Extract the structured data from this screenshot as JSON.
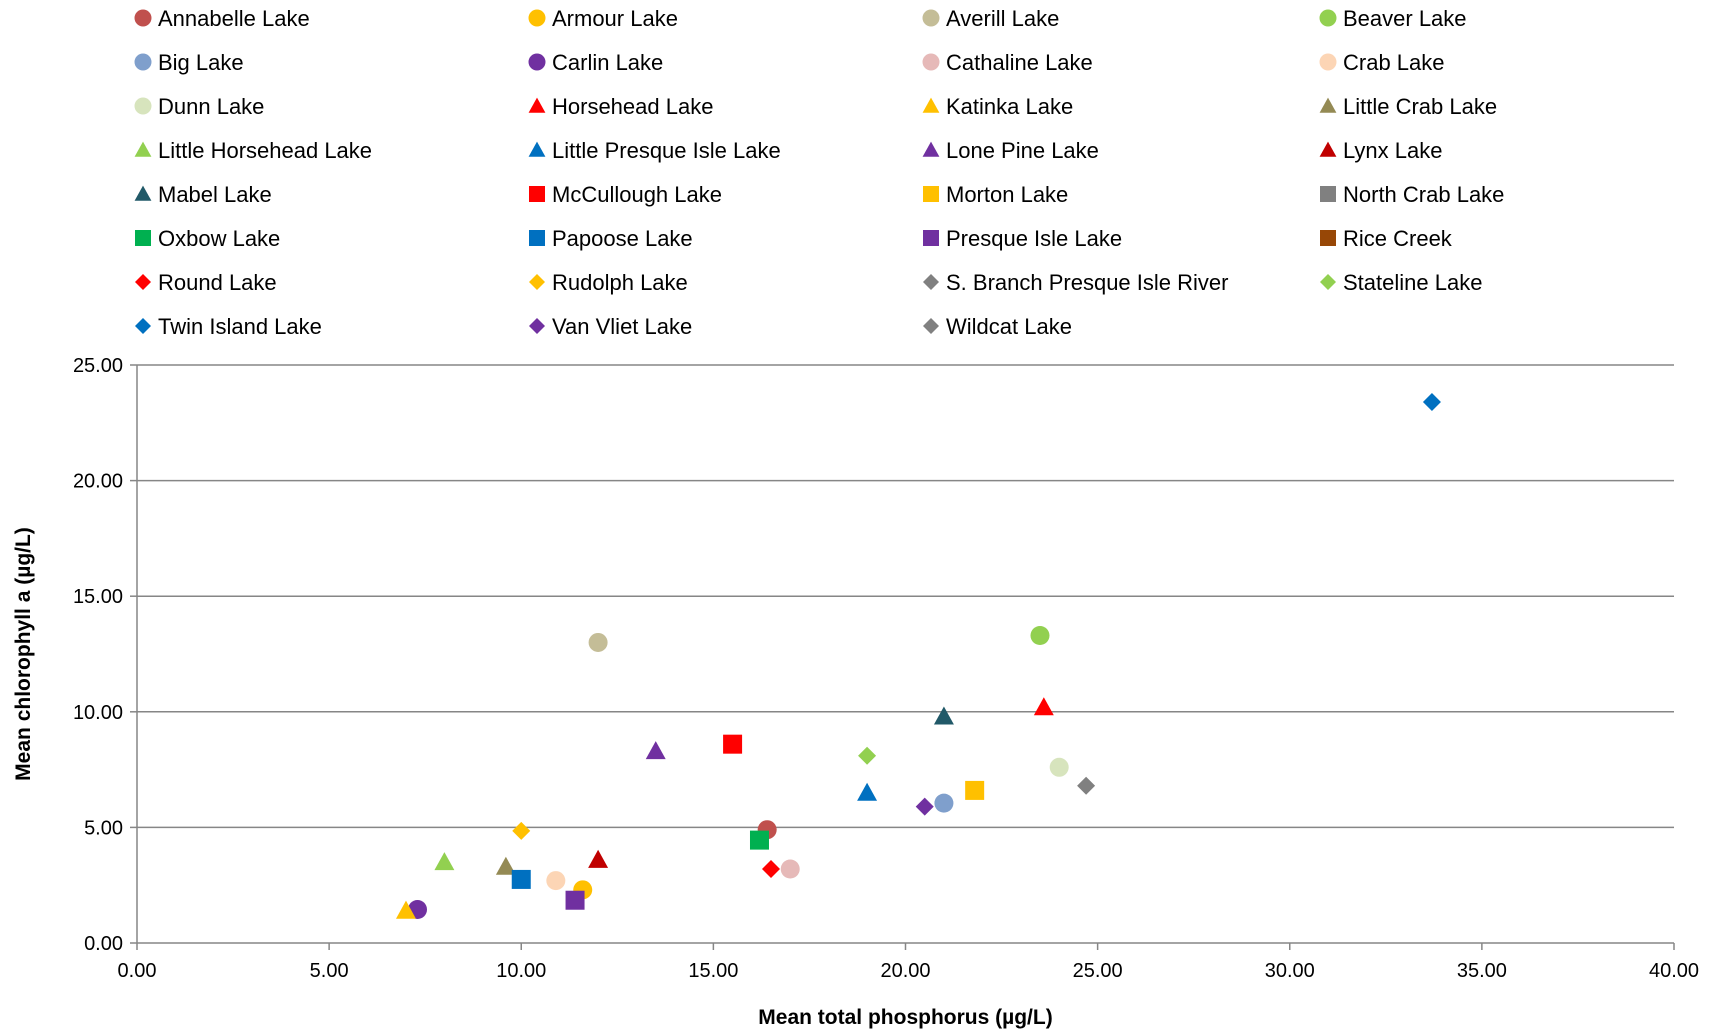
{
  "chart_data": {
    "type": "scatter",
    "title": "",
    "xlabel": "Mean total phosphorus (µg/L)",
    "ylabel": "Mean chlorophyll a (µg/L)",
    "xlim": [
      0,
      40
    ],
    "ylim": [
      0,
      25
    ],
    "x_ticks": [
      "0.00",
      "5.00",
      "10.00",
      "15.00",
      "20.00",
      "25.00",
      "30.00",
      "35.00",
      "40.00"
    ],
    "y_ticks": [
      "0.00",
      "5.00",
      "10.00",
      "15.00",
      "20.00",
      "25.00"
    ],
    "grid": "horizontal",
    "legend_position": "top",
    "series": [
      {
        "name": "Annabelle Lake",
        "marker": "circle",
        "color": "#C0504D",
        "x": 16.4,
        "y": 4.9
      },
      {
        "name": "Armour Lake",
        "marker": "circle",
        "color": "#FFC000",
        "x": 11.6,
        "y": 2.3
      },
      {
        "name": "Averill Lake",
        "marker": "circle",
        "color": "#C4BD97",
        "x": 12.0,
        "y": 13.0
      },
      {
        "name": "Beaver Lake",
        "marker": "circle",
        "color": "#92D050",
        "x": 23.5,
        "y": 13.3
      },
      {
        "name": "Big Lake",
        "marker": "circle",
        "color": "#7F9FCC",
        "x": 21.0,
        "y": 6.05
      },
      {
        "name": "Carlin Lake",
        "marker": "circle",
        "color": "#7030A0",
        "x": 7.3,
        "y": 1.45
      },
      {
        "name": "Cathaline Lake",
        "marker": "circle",
        "color": "#E6B9B8",
        "x": 17.0,
        "y": 3.2
      },
      {
        "name": "Crab Lake",
        "marker": "circle",
        "color": "#FCD5B5",
        "x": 10.9,
        "y": 2.7
      },
      {
        "name": "Dunn Lake",
        "marker": "circle",
        "color": "#D7E4BD",
        "x": 24.0,
        "y": 7.6
      },
      {
        "name": "Horsehead Lake",
        "marker": "triangle",
        "color": "#FF0000",
        "x": 23.6,
        "y": 10.2
      },
      {
        "name": "Katinka Lake",
        "marker": "triangle",
        "color": "#FFC000",
        "x": 7.0,
        "y": 1.4
      },
      {
        "name": "Little Crab Lake",
        "marker": "triangle",
        "color": "#948A54",
        "x": 9.6,
        "y": 3.3
      },
      {
        "name": "Little Horsehead Lake",
        "marker": "triangle",
        "color": "#92D050",
        "x": 8.0,
        "y": 3.5
      },
      {
        "name": "Little Presque Isle Lake",
        "marker": "triangle",
        "color": "#0070C0",
        "x": 19.0,
        "y": 6.5
      },
      {
        "name": "Lone Pine Lake",
        "marker": "triangle",
        "color": "#7030A0",
        "x": 13.5,
        "y": 8.3
      },
      {
        "name": "Lynx Lake",
        "marker": "triangle",
        "color": "#C00000",
        "x": 12.0,
        "y": 3.6
      },
      {
        "name": "Mabel Lake",
        "marker": "triangle",
        "color": "#215968",
        "x": 21.0,
        "y": 9.8
      },
      {
        "name": "McCullough Lake",
        "marker": "square",
        "color": "#FF0000",
        "x": 15.5,
        "y": 8.6
      },
      {
        "name": "Morton Lake",
        "marker": "square",
        "color": "#FFC000",
        "x": 21.8,
        "y": 6.6
      },
      {
        "name": "North Crab Lake",
        "marker": "square",
        "color": "#808080",
        "x": null,
        "y": null
      },
      {
        "name": "Oxbow Lake",
        "marker": "square",
        "color": "#00B050",
        "x": 16.2,
        "y": 4.45
      },
      {
        "name": "Papoose Lake",
        "marker": "square",
        "color": "#0070C0",
        "x": 10.0,
        "y": 2.75
      },
      {
        "name": "Presque Isle Lake",
        "marker": "square",
        "color": "#7030A0",
        "x": 11.4,
        "y": 1.85
      },
      {
        "name": "Rice Creek",
        "marker": "square",
        "color": "#974706",
        "x": null,
        "y": null
      },
      {
        "name": "Round Lake",
        "marker": "diamond",
        "color": "#FF0000",
        "x": 16.5,
        "y": 3.2
      },
      {
        "name": "Rudolph Lake",
        "marker": "diamond",
        "color": "#FFC000",
        "x": 10.0,
        "y": 4.85
      },
      {
        "name": "S. Branch Presque Isle River",
        "marker": "diamond",
        "color": "#808080",
        "x": 24.7,
        "y": 6.8
      },
      {
        "name": "Stateline Lake",
        "marker": "diamond",
        "color": "#92D050",
        "x": 19.0,
        "y": 8.1
      },
      {
        "name": "Twin Island Lake",
        "marker": "diamond",
        "color": "#0070C0",
        "x": 33.7,
        "y": 23.4
      },
      {
        "name": "Van Vliet Lake",
        "marker": "diamond",
        "color": "#7030A0",
        "x": 20.5,
        "y": 5.9
      },
      {
        "name": "Wildcat Lake",
        "marker": "diamond",
        "color": "#808080",
        "x": null,
        "y": null
      }
    ]
  }
}
